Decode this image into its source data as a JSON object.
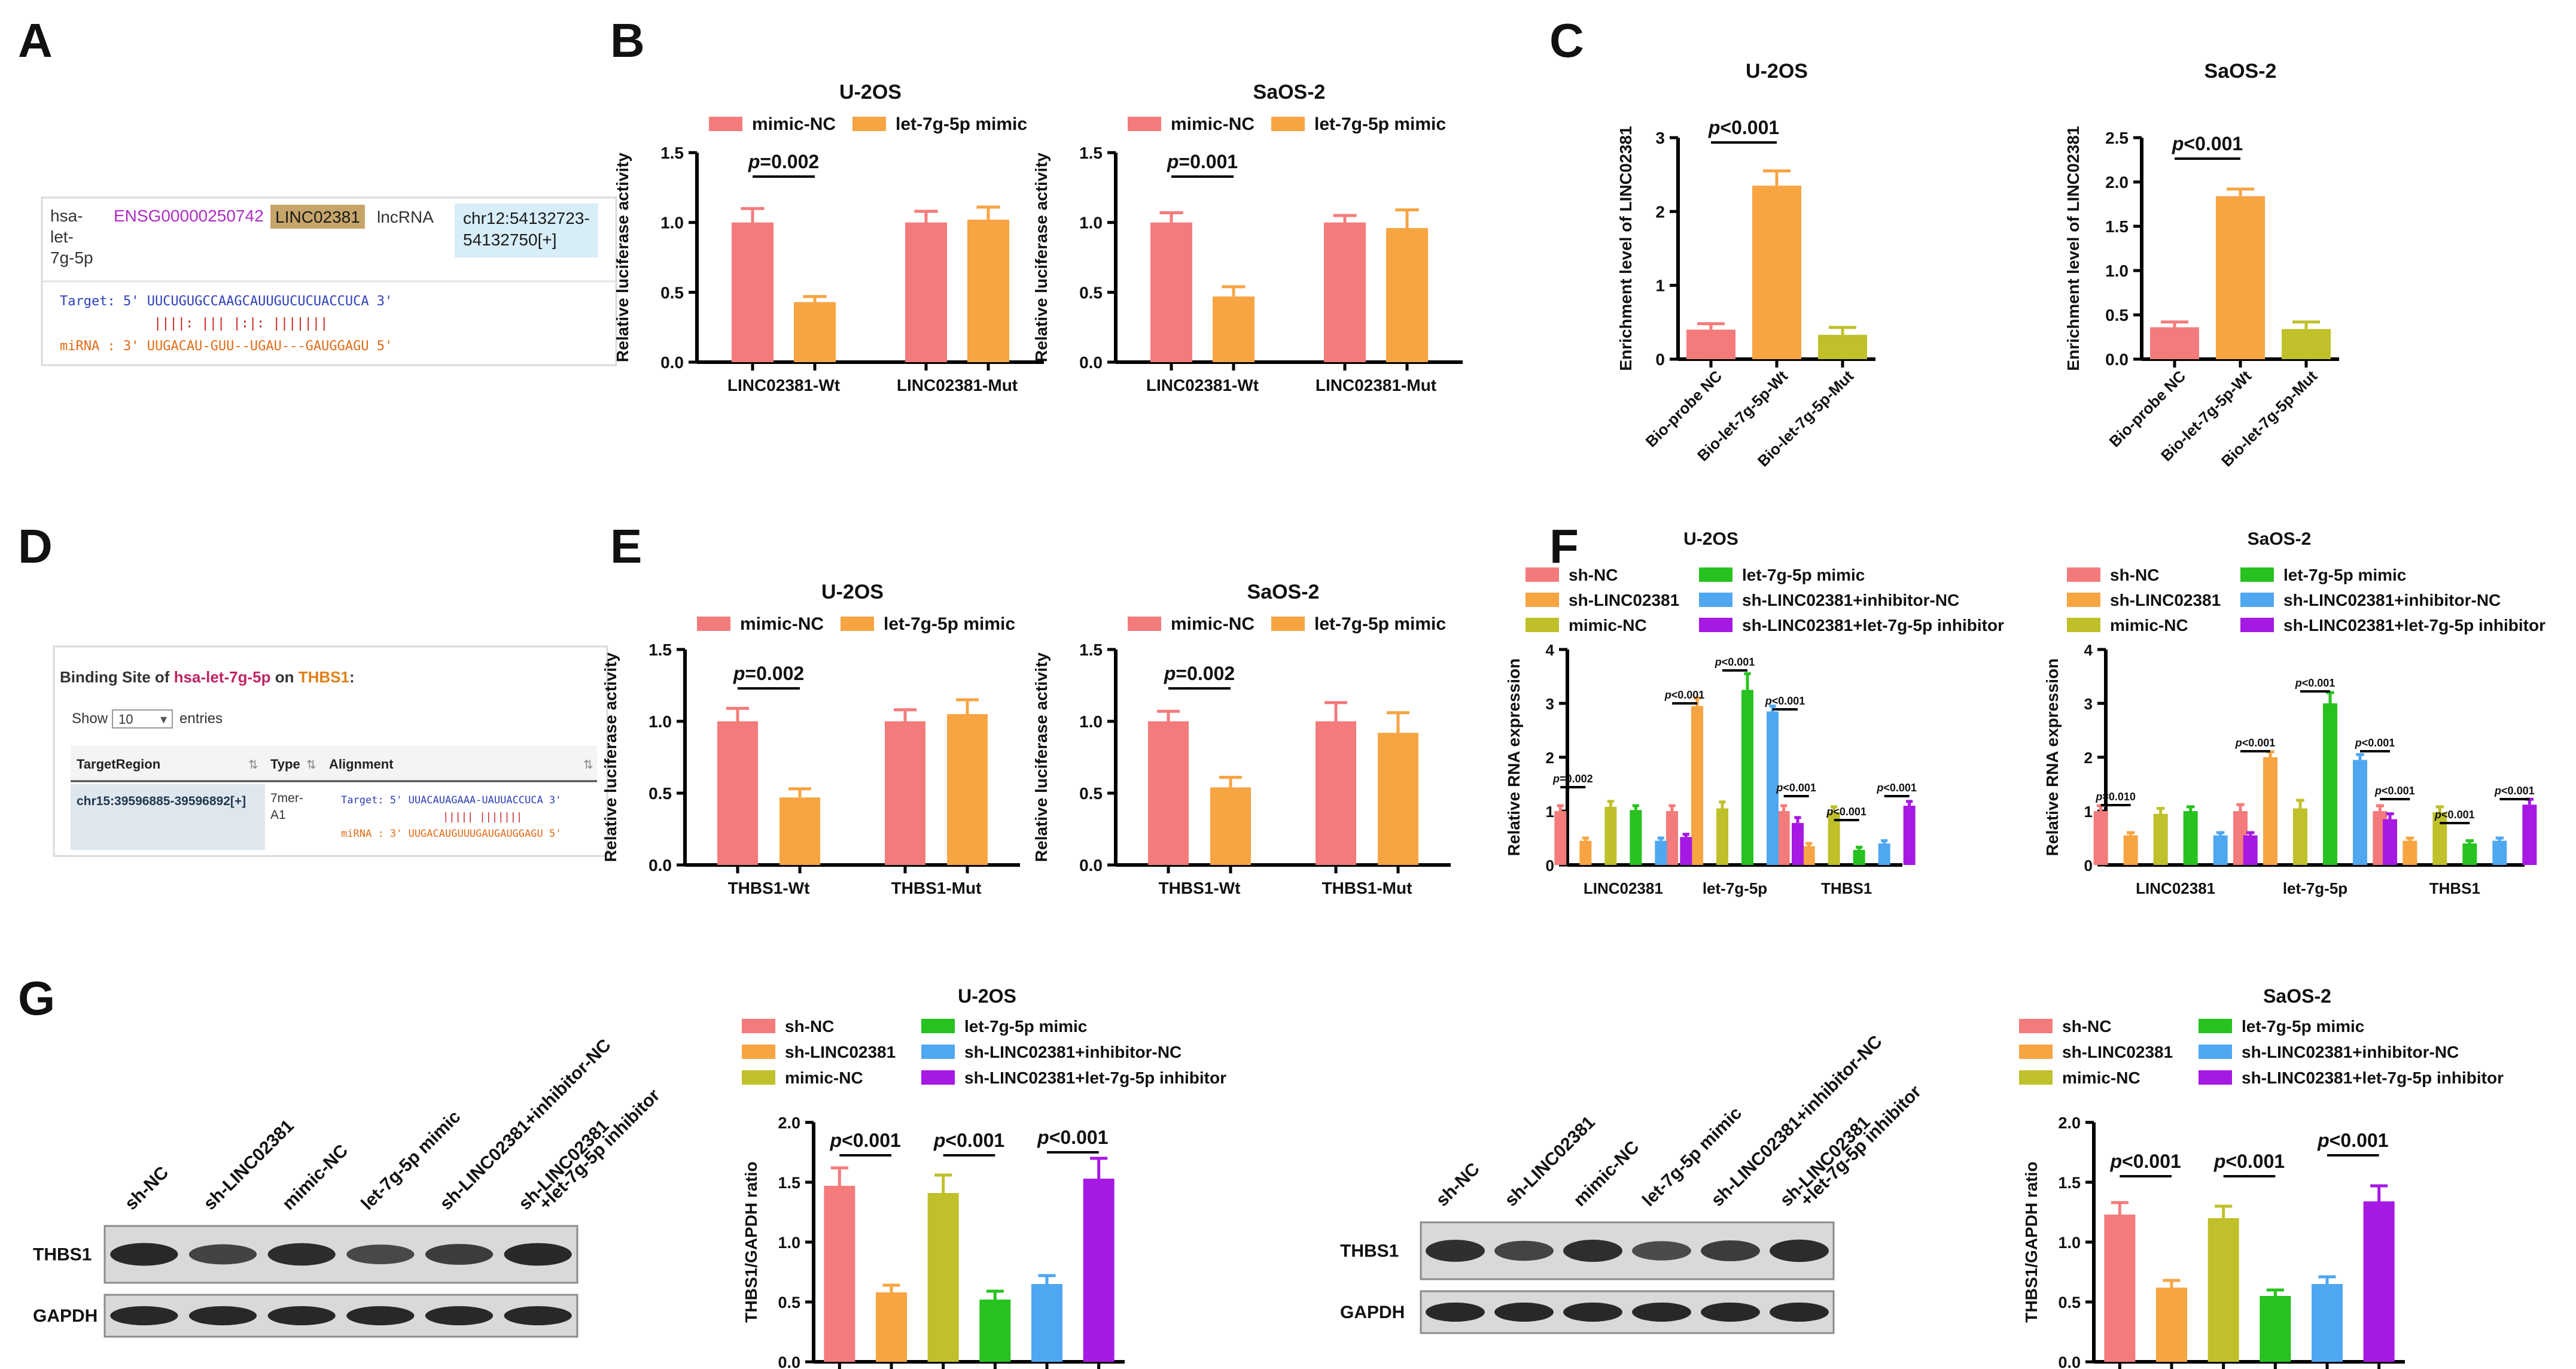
{
  "panel_letters": [
    "A",
    "B",
    "C",
    "D",
    "E",
    "F",
    "G"
  ],
  "colors": {
    "nc": "#f47b7b",
    "mimic": "#f7a443",
    "mimicnc": "#bfc02a",
    "lmimic": "#27c21f",
    "inhnc": "#50a7f1",
    "inh": "#a619e3",
    "err": "#555555"
  },
  "panelA": {
    "mirna": "hsa-let-7g-5p",
    "ensg": "ENSG00000250742",
    "gene": "LINC02381",
    "type": "lncRNA",
    "loc": "chr12:54132723-54132750[+]",
    "target_line": "Target: 5' UUCUGUGCCAAGCAUUGUCUCUACCUCA 3'",
    "pair_line": "||||: |||  |:|:     |||||||",
    "mirna_line": "miRNA : 3' UUGACAU-GUU--UGAU---GAUGGAGU 5'"
  },
  "panelD": {
    "title_prefix": "Binding Site of ",
    "title_mirna": "hsa-let-7g-5p",
    "title_mid": " on ",
    "title_gene": "THBS1",
    "title_colon": ":",
    "show_label": "Show",
    "show_value": "10",
    "entries_label": "entries",
    "col_target": "TargetRegion",
    "col_type": "Type",
    "col_align": "Alignment",
    "row_region": "chr15:39596885-39596892[+]",
    "row_type": "7mer-A1",
    "row_target": "Target: 5' UUACAUAGAAA-UAUUACCUCA 3'",
    "row_pair": "||||| |||||||",
    "row_mirna": "miRNA : 3' UUGACAUGUUUGAUGAUGGAGU 5'"
  },
  "chart_data": [
    {
      "id": "B1",
      "type": "bar",
      "title": "U-2OS",
      "ylabel": "Relative luciferase activity",
      "ylim": [
        0,
        1.5
      ],
      "yticks": [
        "0.0",
        "0.5",
        "1.0",
        "1.5"
      ],
      "categories": [
        "LINC02381-Wt",
        "LINC02381-Mut"
      ],
      "series": [
        {
          "name": "mimic-NC",
          "values": [
            1.0,
            1.0
          ],
          "errors": [
            0.1,
            0.08
          ]
        },
        {
          "name": "let-7g-5p mimic",
          "values": [
            0.43,
            1.02
          ],
          "errors": [
            0.04,
            0.09
          ]
        }
      ],
      "annotations": [
        {
          "text": "p=0.002"
        }
      ]
    },
    {
      "id": "B2",
      "type": "bar",
      "title": "SaOS-2",
      "ylabel": "Relative luciferase activity",
      "ylim": [
        0,
        1.5
      ],
      "yticks": [
        "0.0",
        "0.5",
        "1.0",
        "1.5"
      ],
      "categories": [
        "LINC02381-Wt",
        "LINC02381-Mut"
      ],
      "series": [
        {
          "name": "mimic-NC",
          "values": [
            1.0,
            1.0
          ],
          "errors": [
            0.07,
            0.05
          ]
        },
        {
          "name": "let-7g-5p mimic",
          "values": [
            0.47,
            0.96
          ],
          "errors": [
            0.07,
            0.13
          ]
        }
      ],
      "annotations": [
        {
          "text": "p=0.001"
        }
      ]
    },
    {
      "id": "C1",
      "type": "bar",
      "title": "U-2OS",
      "ylabel": "Enrichment level of LINC02381",
      "ylim": [
        0,
        3
      ],
      "yticks": [
        "0",
        "1",
        "2",
        "3"
      ],
      "categories": [
        "Bio-probe NC",
        "Bio-let-7g-5p-Wt",
        "Bio-let-7g-5p-Mut"
      ],
      "values": [
        0.4,
        2.35,
        0.33
      ],
      "errors": [
        0.08,
        0.2,
        0.1
      ],
      "annotations": [
        {
          "text": "p<0.001"
        }
      ]
    },
    {
      "id": "C2",
      "type": "bar",
      "title": "SaOS-2",
      "ylabel": "Enrichment level of LINC02381",
      "ylim": [
        0,
        2.5
      ],
      "yticks": [
        "0.0",
        "0.5",
        "1.0",
        "1.5",
        "2.0",
        "2.5"
      ],
      "categories": [
        "Bio-probe NC",
        "Bio-let-7g-5p-Wt",
        "Bio-let-7g-5p-Mut"
      ],
      "values": [
        0.36,
        1.84,
        0.34
      ],
      "errors": [
        0.06,
        0.08,
        0.08
      ],
      "annotations": [
        {
          "text": "p<0.001"
        }
      ]
    },
    {
      "id": "E1",
      "type": "bar",
      "title": "U-2OS",
      "ylabel": "Relative luciferase activity",
      "ylim": [
        0,
        1.5
      ],
      "yticks": [
        "0.0",
        "0.5",
        "1.0",
        "1.5"
      ],
      "categories": [
        "THBS1-Wt",
        "THBS1-Mut"
      ],
      "series": [
        {
          "name": "mimic-NC",
          "values": [
            1.0,
            1.0
          ],
          "errors": [
            0.09,
            0.08
          ]
        },
        {
          "name": "let-7g-5p mimic",
          "values": [
            0.47,
            1.05
          ],
          "errors": [
            0.06,
            0.1
          ]
        }
      ],
      "annotations": [
        {
          "text": "p=0.002"
        }
      ]
    },
    {
      "id": "E2",
      "type": "bar",
      "title": "SaOS-2",
      "ylabel": "Relative luciferase activity",
      "ylim": [
        0,
        1.5
      ],
      "yticks": [
        "0.0",
        "0.5",
        "1.0",
        "1.5"
      ],
      "categories": [
        "THBS1-Wt",
        "THBS1-Mut"
      ],
      "series": [
        {
          "name": "mimic-NC",
          "values": [
            1.0,
            1.0
          ],
          "errors": [
            0.07,
            0.13
          ]
        },
        {
          "name": "let-7g-5p mimic",
          "values": [
            0.54,
            0.92
          ],
          "errors": [
            0.07,
            0.14
          ]
        }
      ],
      "annotations": [
        {
          "text": "p=0.002"
        }
      ]
    },
    {
      "id": "F1",
      "type": "bar",
      "title": "U-2OS",
      "ylabel": "Relative RNA expression",
      "ylim": [
        0,
        4
      ],
      "yticks": [
        "0",
        "1",
        "2",
        "3",
        "4"
      ],
      "categories": [
        "LINC02381",
        "let-7g-5p",
        "THBS1"
      ],
      "series": [
        {
          "name": "sh-NC",
          "values": [
            1.0,
            1.0,
            1.0
          ],
          "errors": [
            0.1,
            0.1,
            0.1
          ]
        },
        {
          "name": "sh-LINC02381",
          "values": [
            0.45,
            2.95,
            0.35
          ],
          "errors": [
            0.05,
            0.15,
            0.05
          ]
        },
        {
          "name": "mimic-NC",
          "values": [
            1.08,
            1.05,
            0.98
          ],
          "errors": [
            0.1,
            0.12,
            0.1
          ]
        },
        {
          "name": "let-7g-5p mimic",
          "values": [
            1.02,
            3.25,
            0.28
          ],
          "errors": [
            0.08,
            0.3,
            0.05
          ]
        },
        {
          "name": "sh-LINC02381+inhibitor-NC",
          "values": [
            0.45,
            2.85,
            0.4
          ],
          "errors": [
            0.05,
            0.1,
            0.05
          ]
        },
        {
          "name": "sh-LINC02381+let-7g-5p inhibitor",
          "values": [
            0.52,
            0.78,
            1.1
          ],
          "errors": [
            0.05,
            0.1,
            0.08
          ]
        }
      ],
      "annotations": [
        "p=0.002",
        "p<0.001",
        "p<0.001",
        "p<0.001",
        "p<0.001",
        "p<0.001",
        "p<0.001"
      ]
    },
    {
      "id": "F2",
      "type": "bar",
      "title": "SaOS-2",
      "ylabel": "Relative RNA expression",
      "ylim": [
        0,
        4
      ],
      "yticks": [
        "0",
        "1",
        "2",
        "3",
        "4"
      ],
      "categories": [
        "LINC02381",
        "let-7g-5p",
        "THBS1"
      ],
      "series": [
        {
          "name": "sh-NC",
          "values": [
            1.0,
            1.0,
            1.0
          ],
          "errors": [
            0.1,
            0.12,
            0.1
          ]
        },
        {
          "name": "sh-LINC02381",
          "values": [
            0.55,
            2.0,
            0.45
          ],
          "errors": [
            0.05,
            0.1,
            0.05
          ]
        },
        {
          "name": "mimic-NC",
          "values": [
            0.95,
            1.05,
            0.98
          ],
          "errors": [
            0.1,
            0.15,
            0.1
          ]
        },
        {
          "name": "let-7g-5p mimic",
          "values": [
            1.0,
            3.0,
            0.4
          ],
          "errors": [
            0.08,
            0.2,
            0.05
          ]
        },
        {
          "name": "sh-LINC02381+inhibitor-NC",
          "values": [
            0.55,
            1.95,
            0.45
          ],
          "errors": [
            0.05,
            0.1,
            0.05
          ]
        },
        {
          "name": "sh-LINC02381+let-7g-5p inhibitor",
          "values": [
            0.55,
            0.85,
            1.12
          ],
          "errors": [
            0.05,
            0.1,
            0.1
          ]
        }
      ],
      "annotations": [
        "p=0.010",
        "p<0.001",
        "p<0.001",
        "p<0.001",
        "p<0.001",
        "p<0.001"
      ]
    },
    {
      "id": "G1",
      "type": "bar",
      "title": "U-2OS",
      "ylabel": "THBS1/GAPDH ratio",
      "ylim": [
        0,
        2
      ],
      "yticks": [
        "0.0",
        "0.5",
        "1.0",
        "1.5",
        "2.0"
      ],
      "categories": [
        "sh-NC",
        "sh-LINC02381",
        "mimic-NC",
        "let-7g-5p mimic",
        "sh-LINC02381+inhibitor-NC",
        "sh-LINC02381+let-7g-5p inhibitor"
      ],
      "values": [
        1.47,
        0.58,
        1.41,
        0.52,
        0.65,
        1.53
      ],
      "errors": [
        0.15,
        0.06,
        0.15,
        0.07,
        0.07,
        0.17
      ],
      "annotations": [
        "p<0.001",
        "p<0.001",
        "p<0.001"
      ]
    },
    {
      "id": "G2",
      "type": "bar",
      "title": "SaOS-2",
      "ylabel": "THBS1/GAPDH ratio",
      "ylim": [
        0,
        2
      ],
      "yticks": [
        "0.0",
        "0.5",
        "1.0",
        "1.5",
        "2.0"
      ],
      "categories": [
        "sh-NC",
        "sh-LINC02381",
        "mimic-NC",
        "let-7g-5p mimic",
        "sh-LINC02381+inhibitor-NC",
        "sh-LINC02381+let-7g-5p inhibitor"
      ],
      "values": [
        1.23,
        0.62,
        1.2,
        0.55,
        0.65,
        1.34
      ],
      "errors": [
        0.1,
        0.06,
        0.1,
        0.05,
        0.06,
        0.13
      ],
      "annotations": [
        "p<0.001",
        "p<0.001",
        "p<0.001"
      ]
    }
  ],
  "blots": {
    "lanes": [
      "sh-NC",
      "sh-LINC02381",
      "mimic-NC",
      "let-7g-5p mimic",
      "sh-LINC02381+inhibitor-NC",
      "sh-LINC02381\n+let-7g-5p inhibitor"
    ],
    "rows": [
      "THBS1",
      "GAPDH"
    ],
    "u2os_intensity": [
      1.0,
      0.62,
      0.95,
      0.55,
      0.72,
      0.98
    ],
    "saos_intensity": [
      0.9,
      0.6,
      0.92,
      0.5,
      0.72,
      0.95
    ]
  }
}
